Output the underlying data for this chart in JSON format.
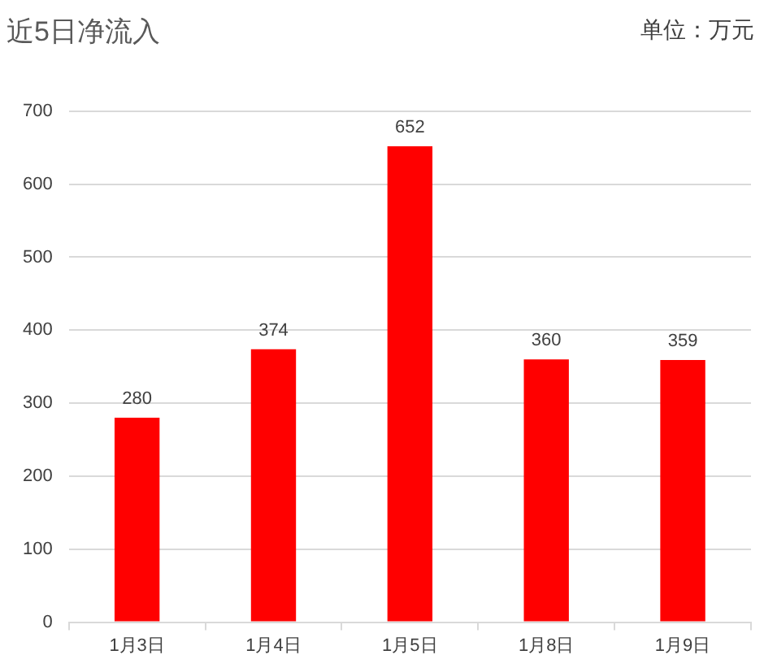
{
  "chart_data": {
    "type": "bar",
    "title": "近5日净流入",
    "annotations": [
      "单位：万元"
    ],
    "categories": [
      "1月3日",
      "1月4日",
      "1月5日",
      "1月8日",
      "1月9日"
    ],
    "values": [
      280,
      374,
      652,
      360,
      359
    ],
    "color": "#ff0000",
    "ylim": [
      0,
      700
    ],
    "yticks": [
      0,
      100,
      200,
      300,
      400,
      500,
      600,
      700
    ],
    "grid": "y",
    "data_labels": true,
    "legend": false
  }
}
